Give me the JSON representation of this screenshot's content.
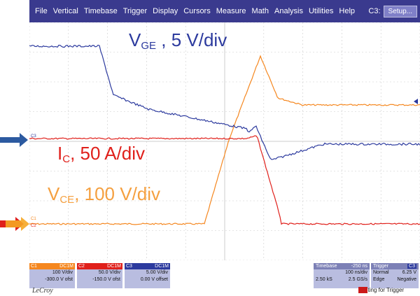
{
  "menu": {
    "items": [
      "File",
      "Vertical",
      "Timebase",
      "Trigger",
      "Display",
      "Cursors",
      "Measure",
      "Math",
      "Analysis",
      "Utilities",
      "Help"
    ],
    "channel_label": "C3:",
    "setup_label": "Setup..."
  },
  "annotations": {
    "vge": {
      "main": "V",
      "sub": "GE",
      "rest": " , 5 V/div"
    },
    "ic": {
      "main": "I",
      "sub": "C",
      "rest": ",  50 A/div"
    },
    "vce": {
      "main": "V",
      "sub": "CE",
      "rest": ", 100 V/div"
    }
  },
  "markers": {
    "c3": "C3",
    "c1": "C1",
    "c2": "C2"
  },
  "channels": [
    {
      "name": "C1",
      "tag": "DC1M",
      "vdiv": "100 V/div",
      "offset": "-300.0 V ofst",
      "color": "#f5871f"
    },
    {
      "name": "C2",
      "tag": "DC1M",
      "vdiv": "50.0 V/div",
      "offset": "-150.0 V ofst",
      "color": "#e0201b"
    },
    {
      "name": "C3",
      "tag": "DC1M",
      "vdiv": "5.00 V/div",
      "offset": "0.00 V offset",
      "color": "#2c3a9e"
    }
  ],
  "timebase": {
    "label": "Timebase",
    "delay": "-250 ns",
    "div": "100 ns/div",
    "samples": "2.50 kS",
    "rate": "2.5 GS/s"
  },
  "trigger": {
    "label": "Trigger",
    "ch": "C3",
    "mode": "Normal",
    "level": "6.25 V",
    "type": "Edge",
    "slope": "Negative"
  },
  "brand": "LeCroy",
  "status": {
    "red_part": "Wai",
    "rest": "ting for Trigger"
  },
  "colors": {
    "c1": "#f5871f",
    "c2": "#e0201b",
    "c3": "#2c3a9e",
    "grid": "#cccccc"
  }
}
